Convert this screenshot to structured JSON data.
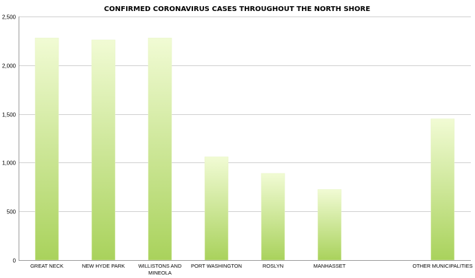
{
  "chart_data": {
    "type": "bar",
    "title": "CONFIRMED CORONAVIRUS CASES THROUGHOUT THE NORTH SHORE",
    "xlabel": "",
    "ylabel": "",
    "categories": [
      [
        "GREAT NECK"
      ],
      [
        "NEW HYDE PARK"
      ],
      [
        "WILLISTONS AND",
        "MINEOLA"
      ],
      [
        "PORT WASHINGTON"
      ],
      [
        "ROSLYN"
      ],
      [
        "MANHASSET"
      ],
      [
        ""
      ],
      [
        "OTHER MUNICIPALITIES"
      ]
    ],
    "values": [
      2280,
      2260,
      2280,
      1060,
      890,
      725,
      null,
      1450
    ],
    "ylim": [
      0,
      2500
    ],
    "yticks": [
      0,
      500,
      1000,
      1500,
      2000,
      2500
    ],
    "ytick_labels": [
      "0",
      "500",
      "1,000",
      "1,500",
      "2,000",
      "2,500"
    ],
    "grid": true,
    "legend": "none",
    "colors": {
      "bar_top": "#f1fbd4",
      "bar_bottom": "#a9d25c",
      "bar_edge": "#e7f4c6",
      "grid": "#cfcfcf",
      "axis": "#9a9a9a"
    }
  }
}
